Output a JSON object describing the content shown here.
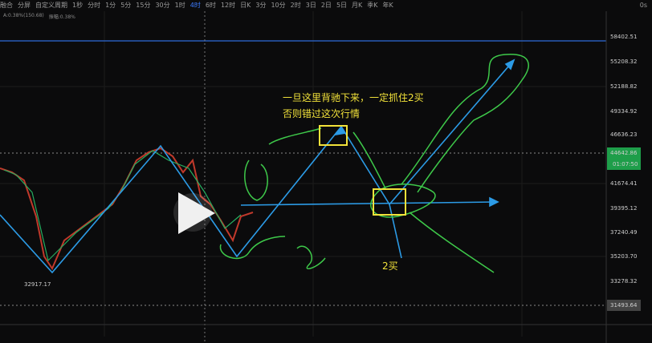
{
  "toolbar": {
    "items": [
      "融合",
      "分屏",
      "自定义周期",
      "1秒",
      "分时",
      "1分",
      "5分",
      "15分",
      "30分",
      "1时",
      "4时",
      "6时",
      "12时",
      "日K",
      "3分",
      "10分",
      "2时",
      "3日",
      "2日",
      "5日",
      "月K",
      "季K",
      "年K"
    ],
    "active": "4时",
    "right": "0s"
  },
  "info": {
    "change": "A:0.38%(150.68)",
    "amplitude": "振幅:0.38%"
  },
  "price_axis": {
    "labels": [
      "58402.51",
      "55208.32",
      "52188.82",
      "49334.92",
      "46636.23",
      "41674.41",
      "39395.12",
      "37240.49",
      "35203.70",
      "33278.32"
    ],
    "current_price": "44642.86",
    "countdown": "01:07:50",
    "line_price": "31493.64"
  },
  "low_label": "32917.17",
  "annotations": {
    "note_line1": "一旦这里背驰下来，一定抓住2买",
    "note_line2": "否则错过这次行情",
    "buy2": "2买"
  }
}
